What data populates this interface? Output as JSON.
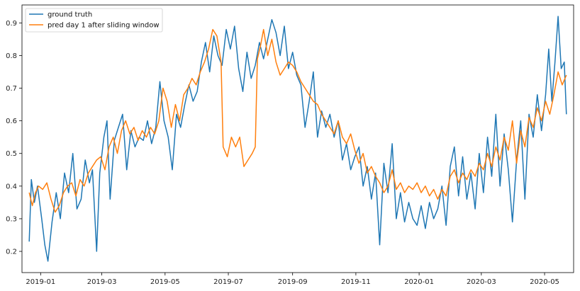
{
  "chart_data": {
    "type": "line",
    "title": "",
    "xlabel": "",
    "ylabel": "",
    "x_start": "2018-12-21",
    "x_end": "2020-05-22",
    "xlim": [
      "2018-12-14",
      "2020-05-29"
    ],
    "ylim": [
      0.135,
      0.955
    ],
    "x_ticks": [
      "2019-01",
      "2019-03",
      "2019-05",
      "2019-07",
      "2019-09",
      "2019-11",
      "2020-01",
      "2020-03",
      "2020-05"
    ],
    "y_ticks": [
      0.2,
      0.3,
      0.4,
      0.5,
      0.6,
      0.7,
      0.8,
      0.9
    ],
    "legend_position": "upper left",
    "grid": false,
    "series": [
      {
        "name": "ground truth",
        "color": "#1f77b4",
        "points": [
          [
            "2018-12-21",
            0.23
          ],
          [
            "2018-12-23",
            0.42
          ],
          [
            "2018-12-26",
            0.35
          ],
          [
            "2018-12-29",
            0.4
          ],
          [
            "2019-01-02",
            0.3
          ],
          [
            "2019-01-05",
            0.22
          ],
          [
            "2019-01-08",
            0.17
          ],
          [
            "2019-01-12",
            0.29
          ],
          [
            "2019-01-16",
            0.38
          ],
          [
            "2019-01-20",
            0.3
          ],
          [
            "2019-01-24",
            0.44
          ],
          [
            "2019-01-28",
            0.38
          ],
          [
            "2019-02-01",
            0.5
          ],
          [
            "2019-02-05",
            0.33
          ],
          [
            "2019-02-09",
            0.36
          ],
          [
            "2019-02-13",
            0.48
          ],
          [
            "2019-02-17",
            0.41
          ],
          [
            "2019-02-20",
            0.45
          ],
          [
            "2019-02-24",
            0.2
          ],
          [
            "2019-02-27",
            0.44
          ],
          [
            "2019-03-03",
            0.55
          ],
          [
            "2019-03-06",
            0.6
          ],
          [
            "2019-03-09",
            0.36
          ],
          [
            "2019-03-13",
            0.54
          ],
          [
            "2019-03-17",
            0.58
          ],
          [
            "2019-03-21",
            0.62
          ],
          [
            "2019-03-25",
            0.45
          ],
          [
            "2019-03-29",
            0.57
          ],
          [
            "2019-04-02",
            0.52
          ],
          [
            "2019-04-06",
            0.55
          ],
          [
            "2019-04-10",
            0.54
          ],
          [
            "2019-04-14",
            0.6
          ],
          [
            "2019-04-18",
            0.53
          ],
          [
            "2019-04-22",
            0.58
          ],
          [
            "2019-04-26",
            0.72
          ],
          [
            "2019-04-30",
            0.6
          ],
          [
            "2019-05-04",
            0.55
          ],
          [
            "2019-05-08",
            0.45
          ],
          [
            "2019-05-12",
            0.62
          ],
          [
            "2019-05-16",
            0.58
          ],
          [
            "2019-05-20",
            0.65
          ],
          [
            "2019-05-24",
            0.71
          ],
          [
            "2019-05-28",
            0.66
          ],
          [
            "2019-06-01",
            0.69
          ],
          [
            "2019-06-05",
            0.78
          ],
          [
            "2019-06-09",
            0.84
          ],
          [
            "2019-06-13",
            0.75
          ],
          [
            "2019-06-17",
            0.86
          ],
          [
            "2019-06-21",
            0.8
          ],
          [
            "2019-06-25",
            0.77
          ],
          [
            "2019-06-29",
            0.88
          ],
          [
            "2019-07-03",
            0.82
          ],
          [
            "2019-07-07",
            0.89
          ],
          [
            "2019-07-11",
            0.76
          ],
          [
            "2019-07-15",
            0.69
          ],
          [
            "2019-07-19",
            0.81
          ],
          [
            "2019-07-23",
            0.73
          ],
          [
            "2019-07-27",
            0.77
          ],
          [
            "2019-07-31",
            0.84
          ],
          [
            "2019-08-04",
            0.79
          ],
          [
            "2019-08-08",
            0.85
          ],
          [
            "2019-08-12",
            0.91
          ],
          [
            "2019-08-16",
            0.87
          ],
          [
            "2019-08-20",
            0.8
          ],
          [
            "2019-08-24",
            0.89
          ],
          [
            "2019-08-28",
            0.76
          ],
          [
            "2019-09-01",
            0.81
          ],
          [
            "2019-09-05",
            0.74
          ],
          [
            "2019-09-09",
            0.71
          ],
          [
            "2019-09-13",
            0.58
          ],
          [
            "2019-09-17",
            0.66
          ],
          [
            "2019-09-21",
            0.75
          ],
          [
            "2019-09-25",
            0.55
          ],
          [
            "2019-09-29",
            0.63
          ],
          [
            "2019-10-03",
            0.58
          ],
          [
            "2019-10-07",
            0.62
          ],
          [
            "2019-10-11",
            0.55
          ],
          [
            "2019-10-15",
            0.6
          ],
          [
            "2019-10-19",
            0.48
          ],
          [
            "2019-10-23",
            0.53
          ],
          [
            "2019-10-27",
            0.45
          ],
          [
            "2019-10-31",
            0.49
          ],
          [
            "2019-11-04",
            0.52
          ],
          [
            "2019-11-08",
            0.4
          ],
          [
            "2019-11-12",
            0.46
          ],
          [
            "2019-11-16",
            0.36
          ],
          [
            "2019-11-20",
            0.44
          ],
          [
            "2019-11-24",
            0.22
          ],
          [
            "2019-11-28",
            0.47
          ],
          [
            "2019-12-02",
            0.38
          ],
          [
            "2019-12-06",
            0.53
          ],
          [
            "2019-12-10",
            0.3
          ],
          [
            "2019-12-14",
            0.38
          ],
          [
            "2019-12-18",
            0.29
          ],
          [
            "2019-12-22",
            0.35
          ],
          [
            "2019-12-26",
            0.3
          ],
          [
            "2019-12-30",
            0.28
          ],
          [
            "2020-01-03",
            0.34
          ],
          [
            "2020-01-07",
            0.27
          ],
          [
            "2020-01-11",
            0.35
          ],
          [
            "2020-01-15",
            0.3
          ],
          [
            "2020-01-19",
            0.33
          ],
          [
            "2020-01-23",
            0.4
          ],
          [
            "2020-01-27",
            0.28
          ],
          [
            "2020-01-31",
            0.46
          ],
          [
            "2020-02-04",
            0.52
          ],
          [
            "2020-02-08",
            0.37
          ],
          [
            "2020-02-12",
            0.49
          ],
          [
            "2020-02-16",
            0.36
          ],
          [
            "2020-02-20",
            0.44
          ],
          [
            "2020-02-24",
            0.33
          ],
          [
            "2020-02-28",
            0.5
          ],
          [
            "2020-03-03",
            0.38
          ],
          [
            "2020-03-07",
            0.55
          ],
          [
            "2020-03-11",
            0.43
          ],
          [
            "2020-03-15",
            0.62
          ],
          [
            "2020-03-19",
            0.4
          ],
          [
            "2020-03-23",
            0.56
          ],
          [
            "2020-03-27",
            0.45
          ],
          [
            "2020-03-31",
            0.29
          ],
          [
            "2020-04-04",
            0.48
          ],
          [
            "2020-04-08",
            0.6
          ],
          [
            "2020-04-12",
            0.36
          ],
          [
            "2020-04-16",
            0.62
          ],
          [
            "2020-04-20",
            0.55
          ],
          [
            "2020-04-24",
            0.68
          ],
          [
            "2020-04-28",
            0.57
          ],
          [
            "2020-05-02",
            0.68
          ],
          [
            "2020-05-05",
            0.82
          ],
          [
            "2020-05-08",
            0.66
          ],
          [
            "2020-05-11",
            0.78
          ],
          [
            "2020-05-14",
            0.92
          ],
          [
            "2020-05-17",
            0.76
          ],
          [
            "2020-05-20",
            0.78
          ],
          [
            "2020-05-22",
            0.62
          ]
        ]
      },
      {
        "name": "pred day 1 after sliding window",
        "color": "#ff7f0e",
        "points": [
          [
            "2018-12-21",
            0.38
          ],
          [
            "2018-12-24",
            0.34
          ],
          [
            "2018-12-27",
            0.38
          ],
          [
            "2018-12-30",
            0.4
          ],
          [
            "2019-01-03",
            0.39
          ],
          [
            "2019-01-07",
            0.41
          ],
          [
            "2019-01-11",
            0.36
          ],
          [
            "2019-01-15",
            0.32
          ],
          [
            "2019-01-19",
            0.34
          ],
          [
            "2019-01-23",
            0.38
          ],
          [
            "2019-01-27",
            0.4
          ],
          [
            "2019-01-31",
            0.41
          ],
          [
            "2019-02-04",
            0.37
          ],
          [
            "2019-02-08",
            0.42
          ],
          [
            "2019-02-12",
            0.4
          ],
          [
            "2019-02-16",
            0.44
          ],
          [
            "2019-02-20",
            0.46
          ],
          [
            "2019-02-24",
            0.48
          ],
          [
            "2019-02-28",
            0.49
          ],
          [
            "2019-03-04",
            0.45
          ],
          [
            "2019-03-08",
            0.52
          ],
          [
            "2019-03-12",
            0.55
          ],
          [
            "2019-03-16",
            0.5
          ],
          [
            "2019-03-20",
            0.57
          ],
          [
            "2019-03-24",
            0.6
          ],
          [
            "2019-03-28",
            0.56
          ],
          [
            "2019-04-01",
            0.58
          ],
          [
            "2019-04-05",
            0.54
          ],
          [
            "2019-04-09",
            0.57
          ],
          [
            "2019-04-13",
            0.55
          ],
          [
            "2019-04-17",
            0.58
          ],
          [
            "2019-04-21",
            0.56
          ],
          [
            "2019-04-25",
            0.6
          ],
          [
            "2019-04-29",
            0.7
          ],
          [
            "2019-05-03",
            0.66
          ],
          [
            "2019-05-07",
            0.58
          ],
          [
            "2019-05-11",
            0.65
          ],
          [
            "2019-05-15",
            0.6
          ],
          [
            "2019-05-19",
            0.68
          ],
          [
            "2019-05-23",
            0.7
          ],
          [
            "2019-05-27",
            0.73
          ],
          [
            "2019-05-31",
            0.71
          ],
          [
            "2019-06-04",
            0.75
          ],
          [
            "2019-06-08",
            0.78
          ],
          [
            "2019-06-12",
            0.82
          ],
          [
            "2019-06-16",
            0.88
          ],
          [
            "2019-06-20",
            0.86
          ],
          [
            "2019-06-24",
            0.78
          ],
          [
            "2019-06-26",
            0.52
          ],
          [
            "2019-06-30",
            0.49
          ],
          [
            "2019-07-04",
            0.55
          ],
          [
            "2019-07-08",
            0.52
          ],
          [
            "2019-07-12",
            0.55
          ],
          [
            "2019-07-16",
            0.46
          ],
          [
            "2019-07-20",
            0.48
          ],
          [
            "2019-07-24",
            0.5
          ],
          [
            "2019-07-27",
            0.52
          ],
          [
            "2019-07-29",
            0.79
          ],
          [
            "2019-08-01",
            0.83
          ],
          [
            "2019-08-04",
            0.88
          ],
          [
            "2019-08-08",
            0.8
          ],
          [
            "2019-08-12",
            0.85
          ],
          [
            "2019-08-16",
            0.78
          ],
          [
            "2019-08-20",
            0.74
          ],
          [
            "2019-08-24",
            0.76
          ],
          [
            "2019-08-28",
            0.78
          ],
          [
            "2019-09-01",
            0.77
          ],
          [
            "2019-09-05",
            0.75
          ],
          [
            "2019-09-09",
            0.72
          ],
          [
            "2019-09-13",
            0.7
          ],
          [
            "2019-09-17",
            0.68
          ],
          [
            "2019-09-21",
            0.66
          ],
          [
            "2019-09-25",
            0.65
          ],
          [
            "2019-09-29",
            0.62
          ],
          [
            "2019-10-03",
            0.6
          ],
          [
            "2019-10-07",
            0.58
          ],
          [
            "2019-10-11",
            0.56
          ],
          [
            "2019-10-15",
            0.6
          ],
          [
            "2019-10-19",
            0.55
          ],
          [
            "2019-10-23",
            0.53
          ],
          [
            "2019-10-27",
            0.56
          ],
          [
            "2019-10-31",
            0.51
          ],
          [
            "2019-11-04",
            0.47
          ],
          [
            "2019-11-08",
            0.5
          ],
          [
            "2019-11-12",
            0.44
          ],
          [
            "2019-11-16",
            0.46
          ],
          [
            "2019-11-20",
            0.43
          ],
          [
            "2019-11-24",
            0.41
          ],
          [
            "2019-11-28",
            0.38
          ],
          [
            "2019-12-02",
            0.4
          ],
          [
            "2019-12-06",
            0.45
          ],
          [
            "2019-12-10",
            0.39
          ],
          [
            "2019-12-14",
            0.41
          ],
          [
            "2019-12-18",
            0.38
          ],
          [
            "2019-12-22",
            0.4
          ],
          [
            "2019-12-26",
            0.39
          ],
          [
            "2019-12-30",
            0.41
          ],
          [
            "2020-01-03",
            0.38
          ],
          [
            "2020-01-07",
            0.4
          ],
          [
            "2020-01-11",
            0.37
          ],
          [
            "2020-01-15",
            0.39
          ],
          [
            "2020-01-19",
            0.36
          ],
          [
            "2020-01-23",
            0.39
          ],
          [
            "2020-01-27",
            0.37
          ],
          [
            "2020-01-31",
            0.43
          ],
          [
            "2020-02-04",
            0.45
          ],
          [
            "2020-02-08",
            0.41
          ],
          [
            "2020-02-12",
            0.44
          ],
          [
            "2020-02-16",
            0.42
          ],
          [
            "2020-02-20",
            0.45
          ],
          [
            "2020-02-24",
            0.43
          ],
          [
            "2020-02-28",
            0.47
          ],
          [
            "2020-03-03",
            0.45
          ],
          [
            "2020-03-07",
            0.5
          ],
          [
            "2020-03-11",
            0.46
          ],
          [
            "2020-03-15",
            0.52
          ],
          [
            "2020-03-19",
            0.48
          ],
          [
            "2020-03-23",
            0.55
          ],
          [
            "2020-03-27",
            0.51
          ],
          [
            "2020-03-31",
            0.6
          ],
          [
            "2020-04-04",
            0.47
          ],
          [
            "2020-04-08",
            0.57
          ],
          [
            "2020-04-12",
            0.52
          ],
          [
            "2020-04-16",
            0.61
          ],
          [
            "2020-04-20",
            0.58
          ],
          [
            "2020-04-24",
            0.64
          ],
          [
            "2020-04-28",
            0.6
          ],
          [
            "2020-05-02",
            0.66
          ],
          [
            "2020-05-06",
            0.62
          ],
          [
            "2020-05-10",
            0.68
          ],
          [
            "2020-05-14",
            0.75
          ],
          [
            "2020-05-18",
            0.71
          ],
          [
            "2020-05-22",
            0.74
          ]
        ]
      }
    ]
  }
}
